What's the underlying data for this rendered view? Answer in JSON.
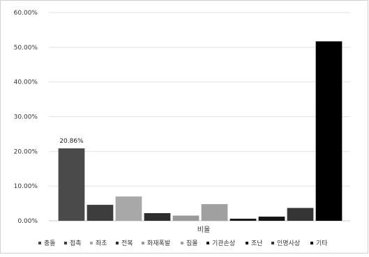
{
  "chart_data": {
    "type": "bar",
    "title": "",
    "xlabel": "",
    "ylabel": "",
    "category": "비율",
    "ylim": [
      0,
      60
    ],
    "yticks": [
      "0.00%",
      "10.00%",
      "20.00%",
      "30.00%",
      "40.00%",
      "50.00%",
      "60.00%"
    ],
    "grid": true,
    "legend_position": "bottom",
    "series": [
      {
        "name": "충돌",
        "value": 20.86,
        "color": "#4a4a4a"
      },
      {
        "name": "접촉",
        "value": 4.6,
        "color": "#3d3d3d"
      },
      {
        "name": "좌초",
        "value": 7.0,
        "color": "#a8a8a8"
      },
      {
        "name": "전복",
        "value": 2.2,
        "color": "#2e2e2e"
      },
      {
        "name": "화재폭발",
        "value": 1.5,
        "color": "#9a9a9a"
      },
      {
        "name": "침몰",
        "value": 4.8,
        "color": "#a0a0a0"
      },
      {
        "name": "기관손상",
        "value": 0.6,
        "color": "#1a1a1a"
      },
      {
        "name": "조난",
        "value": 1.2,
        "color": "#141414"
      },
      {
        "name": "인명사상",
        "value": 3.7,
        "color": "#353535"
      },
      {
        "name": "기타",
        "value": 51.7,
        "color": "#000000"
      }
    ],
    "data_labels": [
      {
        "series": "충돌",
        "text": "20.86%"
      }
    ]
  }
}
